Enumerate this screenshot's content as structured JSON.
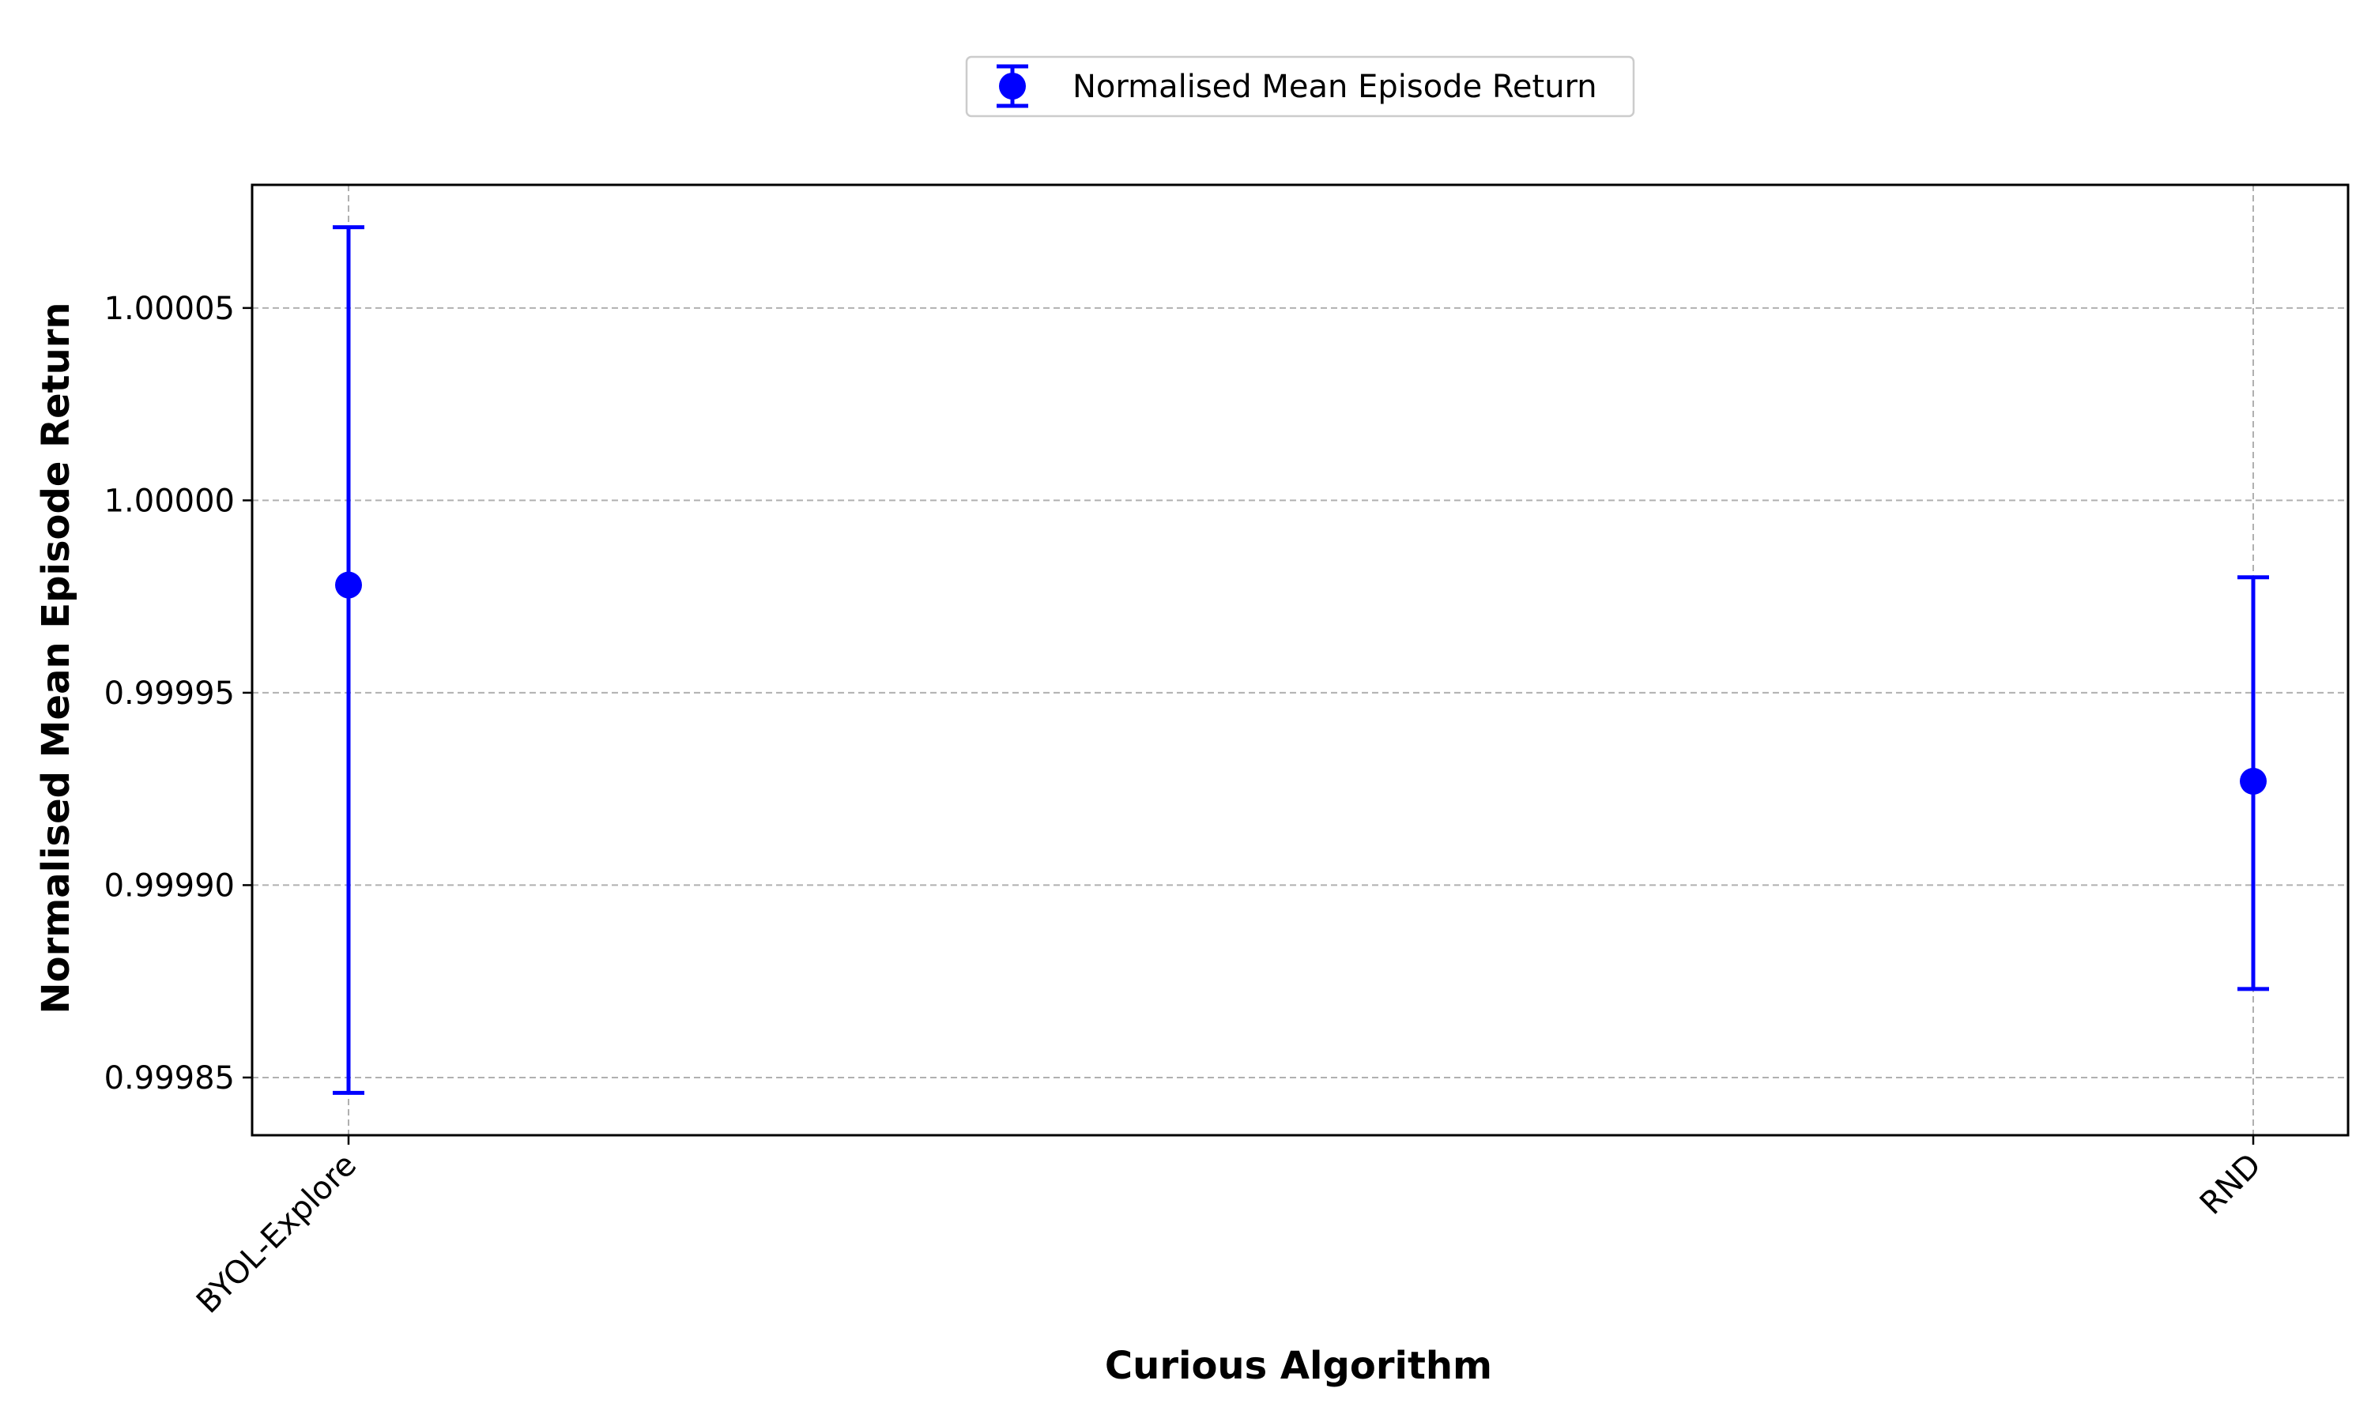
{
  "chart_data": {
    "type": "scatter",
    "xlabel": "Curious Algorithm",
    "ylabel": "Normalised Mean Episode Return",
    "categories": [
      "BYOL-Explore",
      "RND"
    ],
    "series": [
      {
        "name": "Normalised Mean Episode Return",
        "values": [
          0.999978,
          0.999927
        ],
        "error_low": [
          0.999846,
          0.999873
        ],
        "error_high": [
          1.000071,
          0.99998
        ]
      }
    ],
    "ylim": [
      0.999835,
      1.000082
    ],
    "yticks": [
      0.99985,
      0.9999,
      0.99995,
      1.0,
      1.00005
    ],
    "ytick_labels": [
      "0.99985",
      "0.99990",
      "0.99995",
      "1.00000",
      "1.00005"
    ],
    "grid": true,
    "legend_position": "top-center",
    "colors": {
      "series": "#0000ff",
      "grid": "#b0b0b0",
      "axes": "#000000"
    }
  }
}
